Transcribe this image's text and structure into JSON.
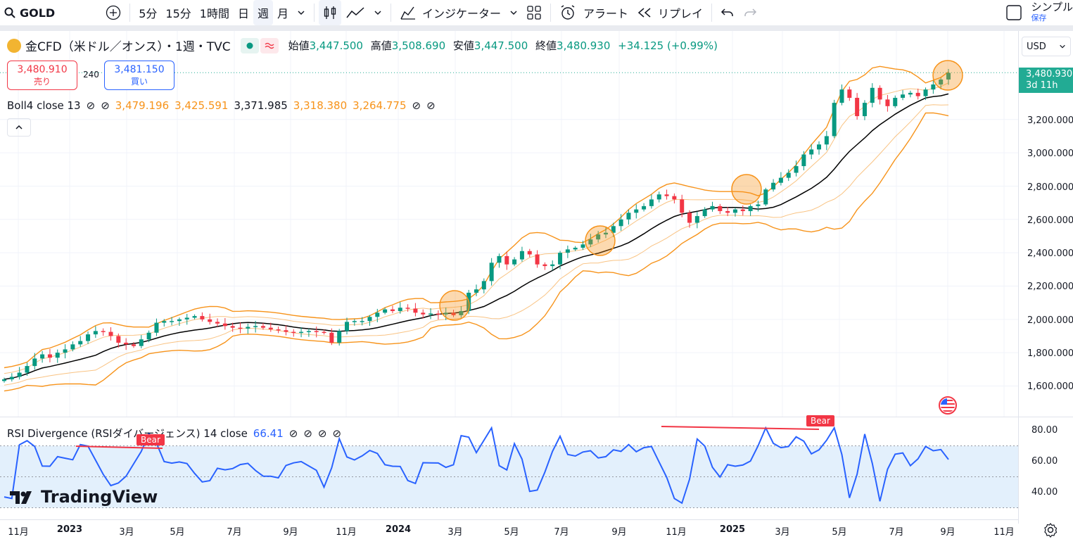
{
  "toolbar": {
    "symbol": "GOLD",
    "intervals": [
      "5分",
      "15分",
      "1時間",
      "日",
      "週",
      "月"
    ],
    "active_interval": "週",
    "indicators_label": "インジケーター",
    "alert_label": "アラート",
    "replay_label": "リプレイ",
    "layout_name": "シンプル",
    "save_label": "保存"
  },
  "legend": {
    "title": "金CFD（米ドル／オンス）・1週・TVC",
    "open_label": "始値",
    "open": "3,447.500",
    "high_label": "高値",
    "high": "3,508.690",
    "low_label": "安値",
    "low": "3,447.500",
    "close_label": "終値",
    "close": "3,480.930",
    "change": "+34.125 (+0.99%)"
  },
  "trade": {
    "sell_price": "3,480.910",
    "sell_label": "売り",
    "spread": "240",
    "buy_price": "3,481.150",
    "buy_label": "買い"
  },
  "boll": {
    "name": "Boll4 close 13",
    "v1": "3,479.196",
    "v2": "3,425.591",
    "v3": "3,371.985",
    "v4": "3,318.380",
    "v5": "3,264.775"
  },
  "rsi": {
    "name": "RSI Divergence (RSIダイバージェンス) 14 close",
    "value": "66.41",
    "bear_label": "Bear"
  },
  "axis": {
    "currency": "USD",
    "last_price": "3,480.930",
    "countdown": "3d 11h",
    "price_ticks": [
      "3,200.000",
      "3,000.000",
      "2,800.000",
      "2,600.000",
      "2,400.000",
      "2,200.000",
      "2,000.000",
      "1,800.000",
      "1,600.000"
    ],
    "rsi_ticks": [
      "80.00",
      "60.00",
      "40.00"
    ]
  },
  "time_axis": [
    {
      "label": "11月",
      "bold": false
    },
    {
      "label": "2023",
      "bold": true
    },
    {
      "label": "3月",
      "bold": false
    },
    {
      "label": "5月",
      "bold": false
    },
    {
      "label": "7月",
      "bold": false
    },
    {
      "label": "9月",
      "bold": false
    },
    {
      "label": "11月",
      "bold": false
    },
    {
      "label": "2024",
      "bold": true
    },
    {
      "label": "3月",
      "bold": false
    },
    {
      "label": "5月",
      "bold": false
    },
    {
      "label": "7月",
      "bold": false
    },
    {
      "label": "9月",
      "bold": false
    },
    {
      "label": "11月",
      "bold": false
    },
    {
      "label": "2025",
      "bold": true
    },
    {
      "label": "3月",
      "bold": false
    },
    {
      "label": "5月",
      "bold": false
    },
    {
      "label": "7月",
      "bold": false
    },
    {
      "label": "9月",
      "bold": false
    },
    {
      "label": "11月",
      "bold": false
    }
  ],
  "branding": "TradingView",
  "colors": {
    "up": "#089981",
    "down": "#f23645",
    "band": "#f7931a",
    "band_inner": "#f9c383",
    "basis": "#000000",
    "rsi": "#2962ff"
  },
  "chart_data": {
    "type": "candlestick",
    "closes": [
      1640,
      1655,
      1680,
      1720,
      1765,
      1790,
      1770,
      1800,
      1820,
      1850,
      1870,
      1910,
      1930,
      1925,
      1900,
      1860,
      1850,
      1840,
      1880,
      1920,
      1980,
      1990,
      1990,
      2000,
      2010,
      2020,
      2000,
      1985,
      1975,
      1960,
      1950,
      1945,
      1955,
      1960,
      1950,
      1940,
      1935,
      1925,
      1920,
      1925,
      1930,
      1925,
      1920,
      1860,
      1930,
      1985,
      1990,
      1990,
      2015,
      2040,
      2060,
      2050,
      2070,
      2065,
      2040,
      2030,
      2035,
      2030,
      2040,
      2025,
      2050,
      2160,
      2180,
      2230,
      2340,
      2380,
      2330,
      2360,
      2410,
      2390,
      2330,
      2320,
      2330,
      2400,
      2420,
      2430,
      2450,
      2480,
      2510,
      2520,
      2560,
      2600,
      2640,
      2660,
      2680,
      2720,
      2750,
      2740,
      2720,
      2640,
      2580,
      2620,
      2660,
      2680,
      2650,
      2640,
      2660,
      2650,
      2680,
      2690,
      2780,
      2820,
      2850,
      2880,
      2920,
      2990,
      3020,
      3050,
      3100,
      3300,
      3380,
      3330,
      3220,
      3300,
      3390,
      3320,
      3280,
      3330,
      3350,
      3360,
      3340,
      3380,
      3410,
      3440,
      3480
    ]
  }
}
